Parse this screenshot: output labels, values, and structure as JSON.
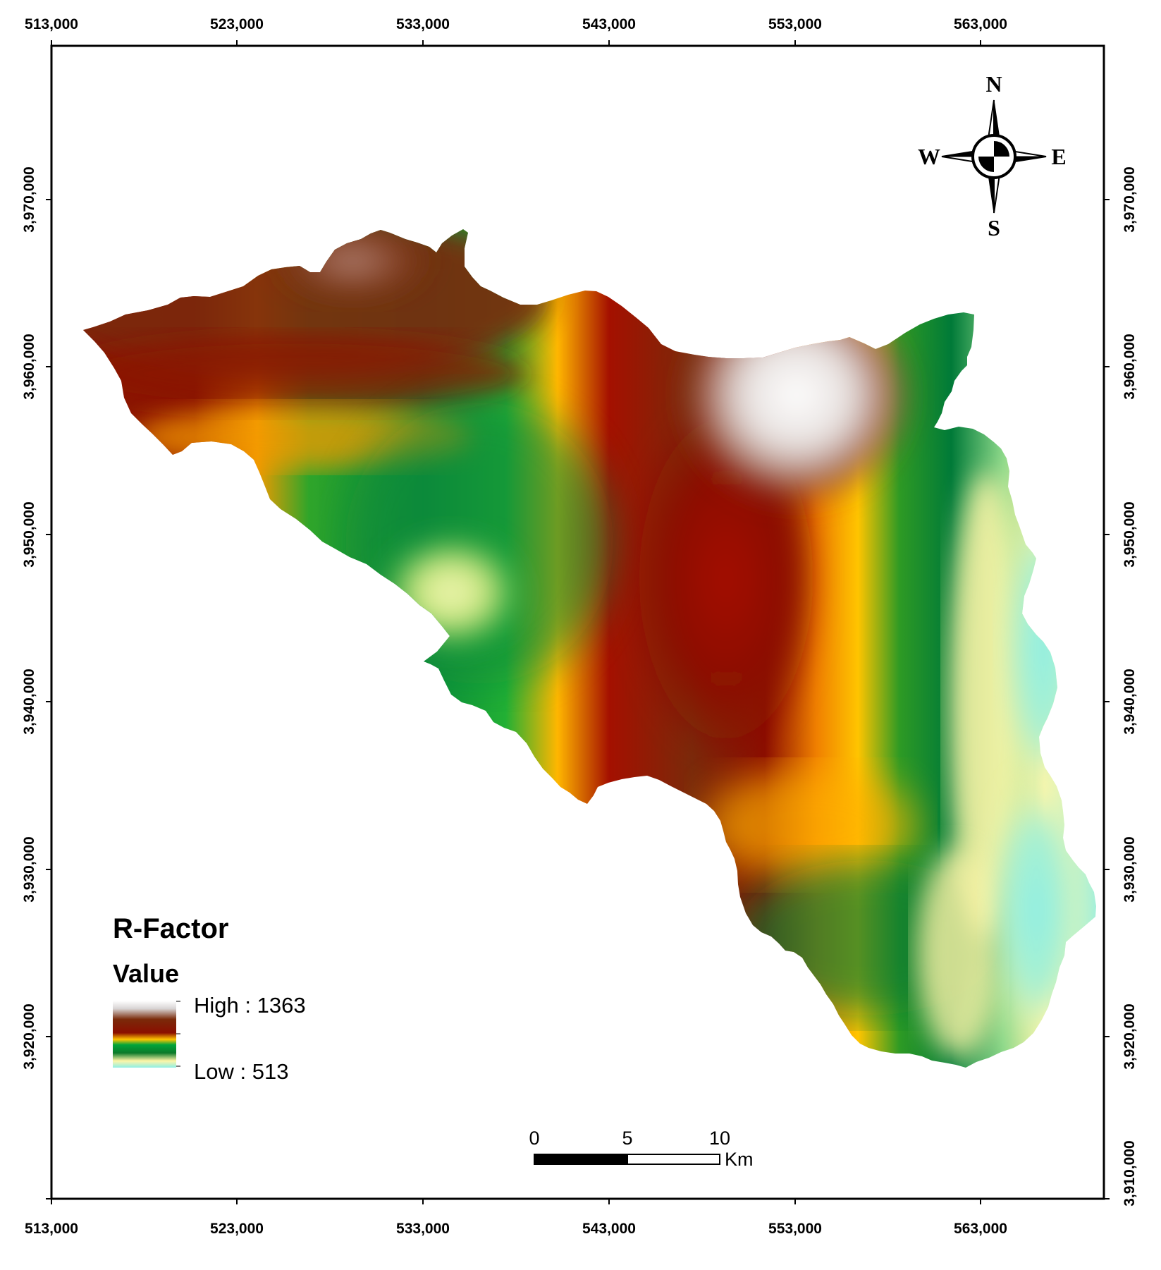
{
  "map": {
    "x_ticks": [
      "513,000",
      "523,000",
      "533,000",
      "543,000",
      "553,000",
      "563,000"
    ],
    "y_ticks": [
      "3,970,000",
      "3,960,000",
      "3,950,000",
      "3,940,000",
      "3,930,000",
      "3,920,000",
      "3,910,000"
    ],
    "colors": {
      "frame": "#000000",
      "white_gray": "#F6F3F3",
      "brown_light": "#9A5E45",
      "brown": "#7A2A0A",
      "dark_red": "#8B0E00",
      "orange": "#F07800",
      "yellow": "#FFC400",
      "light_green": "#A8C42A",
      "green": "#1FA51A",
      "dark_green": "#007A38",
      "bright_green": "#00B038",
      "pale_yellow": "#FFF6A8",
      "light_aqua": "#9BEFC6",
      "aqua": "#8EEFE6"
    }
  },
  "compass": {
    "north": "N",
    "south": "S",
    "east": "E",
    "west": "W"
  },
  "legend": {
    "title": "R-Factor",
    "subtitle": "Value",
    "high_label": "High : 1363",
    "low_label": "Low : 513",
    "high_value": 1363,
    "low_value": 513
  },
  "scale_bar": {
    "labels": [
      "0",
      "5",
      "10"
    ],
    "unit": "Km"
  }
}
